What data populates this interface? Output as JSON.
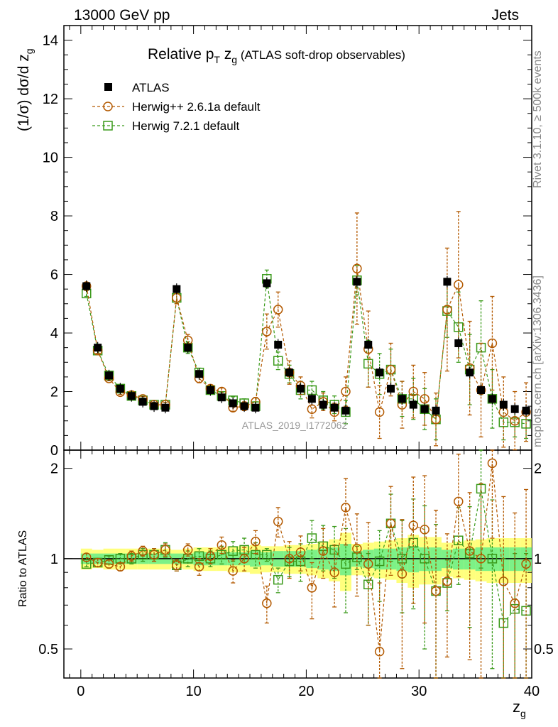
{
  "header": {
    "left": "13000 GeV pp",
    "right": "Jets"
  },
  "side_labels": {
    "rivet": "Rivet 3.1.10, ≥ 500k events",
    "mcplots": "mcplots.cern.ch [arXiv:1306.3436]"
  },
  "chart_data": {
    "type": "scatter",
    "title_main": "Relative p",
    "title_sub": "T",
    "title_var": " z",
    "title_var_sub": "g",
    "title_tail": " (ATLAS soft-drop observables)",
    "analysis_id": "ATLAS_2019_I1772062",
    "xlabel_main": "z",
    "xlabel_sub": "g",
    "ylabel_main": "(1/σ) dσ/d z",
    "ylabel_sub": "g",
    "ratio_ylabel": "Ratio to ATLAS",
    "xlim": [
      -1.5,
      40
    ],
    "ylim": [
      0,
      14.5
    ],
    "ratio_ylim": [
      0.4,
      2.3
    ],
    "x_ticks": [
      0,
      10,
      20,
      30,
      40
    ],
    "y_ticks": [
      0,
      2,
      4,
      6,
      8,
      10,
      12,
      14
    ],
    "ratio_ticks": [
      0.5,
      1,
      2
    ],
    "x": [
      0.5,
      1.5,
      2.5,
      3.5,
      4.5,
      5.5,
      6.5,
      7.5,
      8.5,
      9.5,
      10.5,
      11.5,
      12.5,
      13.5,
      14.5,
      15.5,
      16.5,
      17.5,
      18.5,
      19.5,
      20.5,
      21.5,
      22.5,
      23.5,
      24.5,
      25.5,
      26.5,
      27.5,
      28.5,
      29.5,
      30.5,
      31.5,
      32.5,
      33.5,
      34.5,
      35.5,
      36.5,
      37.5,
      38.5,
      39.5
    ],
    "series": [
      {
        "name": "ATLAS",
        "legend": "ATLAS",
        "color": "#000000",
        "marker": "filled-square",
        "values": [
          5.6,
          3.5,
          2.55,
          2.1,
          1.85,
          1.65,
          1.5,
          1.45,
          5.5,
          3.5,
          2.6,
          2.05,
          1.8,
          1.6,
          1.5,
          1.45,
          5.7,
          3.6,
          2.65,
          2.1,
          1.75,
          1.55,
          1.45,
          1.35,
          5.75,
          3.6,
          2.65,
          2.1,
          1.75,
          1.55,
          1.4,
          1.35,
          5.75,
          3.65,
          2.65,
          2.05,
          1.75,
          1.55,
          1.4,
          1.35
        ]
      },
      {
        "name": "Herwig++ 2.6.1a default",
        "legend": "Herwig++ 2.6.1a default",
        "color": "#b35900",
        "marker": "open-circle",
        "values": [
          5.6,
          3.4,
          2.45,
          1.98,
          1.88,
          1.75,
          1.55,
          1.55,
          5.2,
          3.75,
          2.45,
          2.1,
          2.0,
          1.45,
          1.5,
          1.65,
          4.05,
          4.8,
          2.65,
          2.2,
          1.4,
          1.65,
          1.3,
          2.0,
          6.2,
          3.45,
          1.3,
          2.75,
          1.55,
          2.0,
          1.75,
          1.05,
          4.8,
          5.65,
          2.8,
          2.05,
          3.65,
          1.3,
          1.0,
          1.3
        ],
        "err": [
          0.1,
          0.1,
          0.08,
          0.08,
          0.08,
          0.08,
          0.08,
          0.08,
          0.2,
          0.2,
          0.15,
          0.12,
          0.12,
          0.12,
          0.15,
          0.15,
          0.6,
          0.6,
          0.4,
          0.3,
          0.3,
          0.3,
          0.3,
          0.5,
          1.9,
          1.3,
          0.9,
          0.9,
          0.8,
          0.9,
          0.9,
          0.9,
          2.1,
          2.5,
          1.6,
          1.6,
          1.6,
          1.2,
          1.0,
          1.0
        ]
      },
      {
        "name": "Herwig 7.2.1 default",
        "legend": "Herwig 7.2.1 default",
        "color": "#3a9a1a",
        "marker": "open-square",
        "values": [
          5.35,
          3.4,
          2.55,
          2.1,
          1.85,
          1.7,
          1.55,
          1.55,
          5.2,
          3.5,
          2.65,
          2.05,
          1.85,
          1.7,
          1.6,
          1.5,
          5.85,
          3.05,
          2.6,
          2.05,
          2.05,
          1.7,
          1.55,
          1.3,
          5.8,
          2.95,
          2.6,
          2.75,
          1.75,
          1.75,
          1.4,
          1.05,
          4.75,
          4.2,
          2.75,
          3.5,
          1.75,
          0.95,
          0.95,
          0.9
        ],
        "err": [
          0.1,
          0.1,
          0.08,
          0.08,
          0.08,
          0.08,
          0.08,
          0.08,
          0.2,
          0.2,
          0.15,
          0.12,
          0.12,
          0.12,
          0.15,
          0.15,
          0.3,
          0.3,
          0.3,
          0.3,
          0.3,
          0.3,
          0.3,
          0.4,
          0.5,
          0.8,
          0.7,
          0.7,
          0.6,
          0.7,
          0.7,
          0.7,
          0.9,
          1.2,
          1.2,
          1.6,
          1.0,
          0.6,
          0.5,
          0.5
        ]
      }
    ],
    "ratio_series": [
      {
        "name": "Herwig++ 2.6.1a default",
        "values": [
          1.01,
          0.97,
          0.96,
          0.94,
          1.02,
          1.06,
          1.03,
          1.07,
          0.95,
          1.07,
          0.94,
          1.02,
          1.11,
          0.91,
          1.0,
          1.14,
          0.71,
          1.33,
          1.0,
          1.05,
          0.8,
          1.06,
          0.9,
          1.48,
          1.08,
          0.96,
          0.49,
          1.31,
          0.89,
          1.29,
          1.25,
          0.78,
          0.84,
          1.55,
          1.06,
          1.0,
          2.08,
          0.84,
          0.71,
          0.96
        ],
        "err": [
          0.03,
          0.03,
          0.03,
          0.03,
          0.04,
          0.04,
          0.05,
          0.05,
          0.04,
          0.05,
          0.06,
          0.06,
          0.07,
          0.08,
          0.09,
          0.1,
          0.1,
          0.15,
          0.14,
          0.14,
          0.17,
          0.2,
          0.21,
          0.37,
          0.33,
          0.36,
          0.34,
          0.43,
          0.46,
          0.58,
          0.64,
          0.67,
          0.37,
          0.68,
          0.6,
          0.78,
          0.91,
          0.77,
          0.71,
          0.74
        ]
      },
      {
        "name": "Herwig 7.2.1 default",
        "values": [
          0.96,
          0.97,
          0.99,
          1.0,
          1.0,
          1.03,
          1.03,
          1.07,
          0.95,
          1.0,
          1.02,
          1.0,
          1.03,
          1.06,
          1.07,
          1.03,
          1.03,
          0.85,
          0.98,
          0.98,
          1.17,
          1.1,
          1.07,
          0.96,
          1.01,
          0.82,
          0.98,
          1.31,
          1.0,
          1.13,
          1.0,
          0.78,
          0.83,
          1.15,
          1.04,
          1.71,
          1.0,
          0.61,
          0.68,
          0.67
        ],
        "err": [
          0.02,
          0.03,
          0.03,
          0.04,
          0.04,
          0.05,
          0.05,
          0.06,
          0.04,
          0.06,
          0.06,
          0.06,
          0.07,
          0.08,
          0.1,
          0.1,
          0.05,
          0.08,
          0.11,
          0.14,
          0.17,
          0.19,
          0.21,
          0.3,
          0.09,
          0.22,
          0.26,
          0.33,
          0.34,
          0.45,
          0.5,
          0.52,
          0.16,
          0.33,
          0.45,
          0.78,
          0.57,
          0.39,
          0.36,
          0.37
        ]
      }
    ],
    "band_yellow": [
      0.08,
      0.07,
      0.08,
      0.08,
      0.08,
      0.08,
      0.08,
      0.08,
      0.07,
      0.08,
      0.09,
      0.09,
      0.09,
      0.1,
      0.1,
      0.11,
      0.1,
      0.1,
      0.11,
      0.11,
      0.12,
      0.14,
      0.16,
      0.22,
      0.12,
      0.13,
      0.14,
      0.15,
      0.17,
      0.2,
      0.18,
      0.18,
      0.13,
      0.14,
      0.15,
      0.16,
      0.17,
      0.17,
      0.17,
      0.17
    ],
    "band_green": [
      0.04,
      0.04,
      0.04,
      0.04,
      0.04,
      0.04,
      0.04,
      0.04,
      0.04,
      0.04,
      0.05,
      0.05,
      0.05,
      0.05,
      0.05,
      0.06,
      0.05,
      0.06,
      0.06,
      0.06,
      0.07,
      0.08,
      0.09,
      0.12,
      0.06,
      0.07,
      0.08,
      0.08,
      0.09,
      0.1,
      0.09,
      0.09,
      0.07,
      0.08,
      0.08,
      0.09,
      0.09,
      0.09,
      0.09,
      0.09
    ]
  }
}
